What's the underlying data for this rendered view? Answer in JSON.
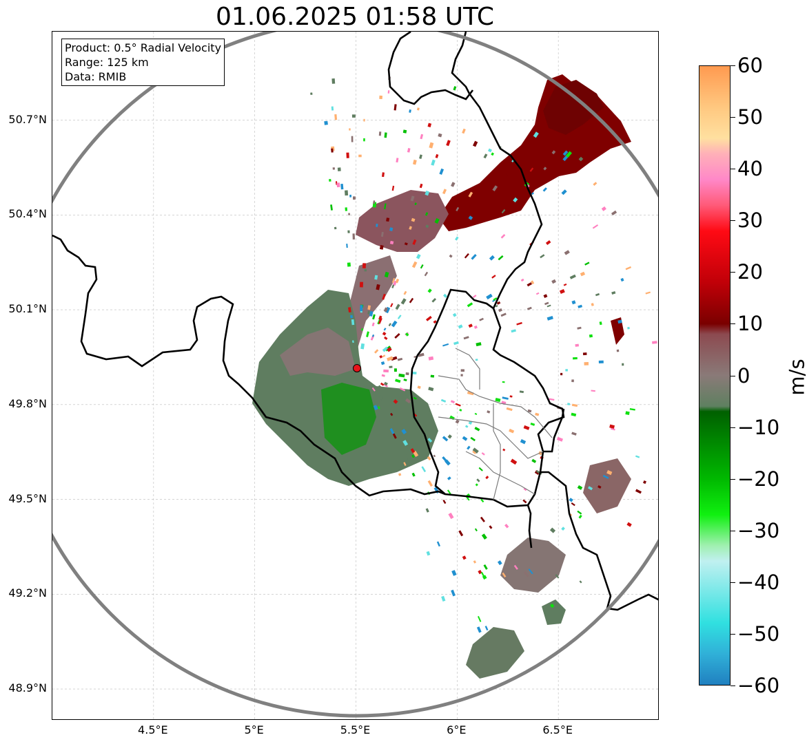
{
  "title": "01.06.2025 01:58 UTC",
  "info_box": {
    "product": "Product: 0.5° Radial Velocity",
    "range": "Range: 125 km",
    "data": "Data: RMIB"
  },
  "map": {
    "lon_range": [
      4.0,
      7.0
    ],
    "lat_range": [
      48.8,
      50.98
    ],
    "radar_site": {
      "lon": 5.505,
      "lat": 49.915,
      "color": "#e8131b"
    },
    "range_ring_color": "#808080",
    "x_ticks": [
      {
        "value": 4.5,
        "label": "4.5°E"
      },
      {
        "value": 5.0,
        "label": "5°E"
      },
      {
        "value": 5.5,
        "label": "5.5°E"
      },
      {
        "value": 6.0,
        "label": "6°E"
      },
      {
        "value": 6.5,
        "label": "6.5°E"
      }
    ],
    "y_ticks": [
      {
        "value": 50.7,
        "label": "50.7°N"
      },
      {
        "value": 50.4,
        "label": "50.4°N"
      },
      {
        "value": 50.1,
        "label": "50.1°N"
      },
      {
        "value": 49.8,
        "label": "49.8°N"
      },
      {
        "value": 49.5,
        "label": "49.5°N"
      },
      {
        "value": 49.2,
        "label": "49.2°N"
      },
      {
        "value": 48.9,
        "label": "48.9°N"
      }
    ],
    "grid": true
  },
  "colorbar": {
    "label": "m/s",
    "range": [
      -60,
      60
    ],
    "ticks": [
      {
        "value": 60,
        "label": "60"
      },
      {
        "value": 50,
        "label": "50"
      },
      {
        "value": 40,
        "label": "40"
      },
      {
        "value": 30,
        "label": "30"
      },
      {
        "value": 20,
        "label": "20"
      },
      {
        "value": 10,
        "label": "10"
      },
      {
        "value": 0,
        "label": "0"
      },
      {
        "value": -10,
        "label": "−10"
      },
      {
        "value": -20,
        "label": "−20"
      },
      {
        "value": -30,
        "label": "−30"
      },
      {
        "value": -40,
        "label": "−40"
      },
      {
        "value": -50,
        "label": "−50"
      },
      {
        "value": -60,
        "label": "−60"
      }
    ],
    "stops": [
      {
        "value": 60,
        "color": "#ff9a50"
      },
      {
        "value": 52,
        "color": "#ffc880"
      },
      {
        "value": 46,
        "color": "#ffe0a0"
      },
      {
        "value": 43,
        "color": "#ffb0b8"
      },
      {
        "value": 38,
        "color": "#ff88c8"
      },
      {
        "value": 33,
        "color": "#ff5a78"
      },
      {
        "value": 28,
        "color": "#ff0a14"
      },
      {
        "value": 18,
        "color": "#c00008"
      },
      {
        "value": 10,
        "color": "#7a0000"
      },
      {
        "value": 8,
        "color": "#8c4a50"
      },
      {
        "value": 0,
        "color": "#8a7a78"
      },
      {
        "value": -6,
        "color": "#5e8060"
      },
      {
        "value": -7,
        "color": "#006000"
      },
      {
        "value": -20,
        "color": "#00b800"
      },
      {
        "value": -27,
        "color": "#10f010"
      },
      {
        "value": -33,
        "color": "#a0f0b0"
      },
      {
        "value": -36,
        "color": "#c0f0f0"
      },
      {
        "value": -48,
        "color": "#30e0e0"
      },
      {
        "value": -54,
        "color": "#30b0d8"
      },
      {
        "value": -60,
        "color": "#2080c0"
      }
    ]
  }
}
